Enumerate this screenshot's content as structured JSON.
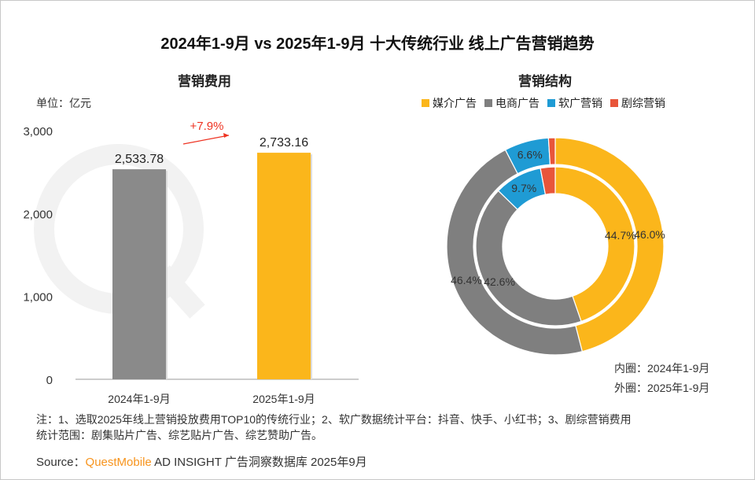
{
  "title": "2024年1-9月 vs 2025年1-9月 十大传统行业 线上广告营销趋势",
  "watermark": "QUESTMOBILE",
  "left": {
    "subtitle": "营销费用",
    "unit": "单位：亿元",
    "growth": "+7.9%"
  },
  "right": {
    "subtitle": "营销结构",
    "inner_note": "内圈：2024年1-9月",
    "outer_note": "外圈：2025年1-9月"
  },
  "notes": [
    "注：1、选取2025年线上营销投放费用TOP10的传统行业；2、软广数据统计平台：抖音、快手、小红书；3、剧综营销费用",
    "统计范围：剧集贴片广告、综艺贴片广告、综艺赞助广告。"
  ],
  "source": {
    "prefix": "Source：",
    "brand": "QuestMobile",
    "rest": " AD INSIGHT 广告洞察数据库 2025年9月"
  },
  "chart_data": [
    {
      "type": "bar",
      "categories": [
        "2024年1-9月",
        "2025年1-9月"
      ],
      "values": [
        2533.78,
        2733.16
      ],
      "value_labels": [
        "2,533.78",
        "2,733.16"
      ],
      "colors": [
        "#8a8a8a",
        "#fbb61b"
      ],
      "ylim": [
        0,
        3000
      ],
      "yticks": [
        "0",
        "1,000",
        "2,000",
        "3,000"
      ],
      "ytick_values": [
        0,
        1000,
        2000,
        3000
      ],
      "grid": false
    },
    {
      "type": "pie",
      "subtype": "double-donut",
      "legend_position": "top",
      "categories": [
        "媒介广告",
        "电商广告",
        "软广营销",
        "剧综营销"
      ],
      "colors": [
        "#fbb61b",
        "#7f7f7f",
        "#1f9bd4",
        "#e8553a"
      ],
      "series": [
        {
          "name": "内圈：2024年1-9月",
          "values": [
            44.7,
            42.6,
            9.7,
            3.0
          ],
          "labels": [
            "44.7%",
            "42.6%",
            "9.7%",
            ""
          ]
        },
        {
          "name": "外圈：2025年1-9月",
          "values": [
            46.0,
            46.4,
            6.6,
            1.0
          ],
          "labels": [
            "46.0%",
            "46.4%",
            "6.6%",
            ""
          ]
        }
      ]
    }
  ]
}
